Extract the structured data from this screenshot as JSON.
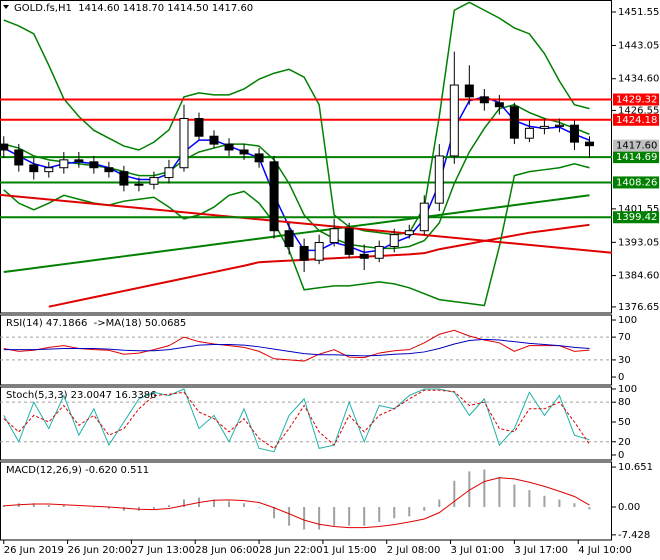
{
  "chart_data": [
    {
      "type": "candlestick",
      "title": "GOLD.fs,H1  1414.60 1418.70 1414.50 1417.60",
      "xlim": [
        -1,
        162
      ],
      "ylim": [
        1375.1,
        1454.6
      ],
      "x": [
        0,
        4,
        8,
        12,
        16,
        20,
        24,
        28,
        32,
        36,
        40,
        44,
        48,
        52,
        56,
        60,
        64,
        68,
        72,
        76,
        80,
        84,
        88,
        92,
        96,
        100,
        104,
        108,
        112,
        116,
        120,
        124,
        128,
        132,
        136,
        140,
        144,
        148,
        152,
        156
      ],
      "xticks": [
        {
          "value": 0,
          "label": "26 Jun 2019"
        },
        {
          "value": 17,
          "label": "26 Jun 20:00"
        },
        {
          "value": 34,
          "label": "27 Jun 13:00"
        },
        {
          "value": 51,
          "label": "28 Jun 06:00"
        },
        {
          "value": 68,
          "label": "28 Jun 22:00"
        },
        {
          "value": 85,
          "label": "1 Jul 15:00"
        },
        {
          "value": 102,
          "label": "2 Jul 08:00"
        },
        {
          "value": 119,
          "label": "3 Jul 01:00"
        },
        {
          "value": 136,
          "label": "3 Jul 17:00"
        },
        {
          "value": 153,
          "label": "4 Jul 10:00"
        }
      ],
      "yticks": [
        1451.55,
        1443.05,
        {
          "value": 1434.6,
          "label": "1434.60"
        },
        1426.55,
        1401.55,
        1393.05,
        {
          "value": 1384.6,
          "label": "1384.60"
        },
        1376.65
      ],
      "up_color": "#ffffff",
      "down_color": "#000000",
      "open": [
        1418,
        1416.5,
        1412.7,
        1411,
        1412,
        1414,
        1413.5,
        1412,
        1411,
        1407.6,
        1407.8,
        1409.5,
        1412,
        1424.5,
        1420,
        1418,
        1416.5,
        1415.5,
        1413.5,
        1396,
        1392,
        1388.5,
        1393,
        1396.5,
        1390,
        1389,
        1392,
        1395,
        1396,
        1403,
        1415,
        1433,
        1430,
        1428.5,
        1427.5,
        1419.5,
        1422,
        1422.5,
        1422.8,
        1418.5
      ],
      "high": [
        1420,
        1418,
        1414.5,
        1413.5,
        1416,
        1416,
        1415,
        1413.5,
        1412.5,
        1409.5,
        1411,
        1414,
        1428,
        1426,
        1421.5,
        1419.5,
        1418,
        1417,
        1415,
        1398,
        1394,
        1395,
        1399,
        1398,
        1392.5,
        1393.5,
        1396.5,
        1397.5,
        1405,
        1418,
        1441.5,
        1438,
        1432,
        1430.5,
        1428.5,
        1424,
        1424.5,
        1424.5,
        1424,
        1420
      ],
      "low": [
        1414.5,
        1411,
        1409,
        1409.5,
        1410.5,
        1412,
        1410.5,
        1409.5,
        1406,
        1406,
        1406.5,
        1408,
        1411,
        1419,
        1417,
        1415,
        1414,
        1412,
        1394,
        1390,
        1385.5,
        1387.5,
        1392,
        1389,
        1386,
        1388,
        1390.5,
        1394,
        1395,
        1401,
        1413,
        1428,
        1426.5,
        1425.5,
        1418,
        1418.5,
        1420.5,
        1421,
        1416.5,
        1414.5
      ],
      "close": [
        1416.5,
        1412.7,
        1411,
        1412,
        1414,
        1413.5,
        1412,
        1411,
        1407.6,
        1407.8,
        1409.5,
        1412,
        1424.5,
        1420,
        1418,
        1416.5,
        1415.5,
        1413.5,
        1396,
        1392,
        1388.5,
        1393,
        1396.5,
        1390,
        1389,
        1392,
        1395,
        1396,
        1403,
        1415,
        1433,
        1430,
        1428.5,
        1427.5,
        1419.5,
        1422,
        1422.5,
        1422.8,
        1418.5,
        1417.6
      ],
      "series": [
        {
          "color": "#008000",
          "values": [
            1385.5,
            1386,
            1386.5,
            1387,
            1387.5,
            1388,
            1388.5,
            1389,
            1389.5,
            1390,
            1390.5,
            1391,
            1391.5,
            1392,
            1392.5,
            1393,
            1393.5,
            1394,
            1394.5,
            1395,
            1395.5,
            1396,
            1396.5,
            1397,
            1397.5,
            1398,
            1398.5,
            1399,
            1399.5,
            1400,
            1400.5,
            1401,
            1401.5,
            1402,
            1402.5,
            1403,
            1403.5,
            1404,
            1404.5,
            1405
          ]
        },
        {
          "color": "#e00000",
          "values": [
            null,
            null,
            null,
            1376.7,
            1377.5,
            1378.3,
            1379.1,
            1379.9,
            1380.7,
            1381.5,
            1382.3,
            1383.1,
            1383.9,
            1384.7,
            1385.5,
            1386.3,
            1387.1,
            1388,
            1388.2,
            1388.4,
            1388.6,
            1388.8,
            1389,
            1389.2,
            1389.4,
            1389.6,
            1389.8,
            1390,
            1390.3,
            1391.3,
            1392,
            1392.7,
            1393.4,
            1394.1,
            1394.8,
            1395.5,
            1396,
            1396.5,
            1397,
            1397.5
          ]
        },
        {
          "color": "#008000",
          "values": [
            1449.5,
            1448,
            1446,
            1438,
            1429.5,
            1425,
            1421.5,
            1419.5,
            1417.5,
            1416.5,
            1418.5,
            1421.6,
            1430,
            1431,
            1430.5,
            1430.5,
            1432,
            1434.5,
            1436,
            1437,
            1435,
            1428,
            1400,
            1397,
            1396,
            1395.5,
            1395,
            1395.5,
            1402,
            1425,
            1452,
            1454,
            1452,
            1450,
            1447.5,
            1446,
            1441,
            1434,
            1428,
            1427
          ]
        },
        {
          "color": "#008000",
          "values": [
            1406.4,
            1403,
            1401.3,
            1403,
            1405,
            1404,
            1403,
            1402.5,
            1403.5,
            1404,
            1404.5,
            1402,
            1399,
            1400,
            1402,
            1405,
            1406,
            1403,
            1398,
            1391,
            1381,
            1381.5,
            1382,
            1382,
            1382.5,
            1383,
            1382.5,
            1381.5,
            1380,
            1378.5,
            1378,
            1377.5,
            1377,
            1392,
            1410,
            1411,
            1411.5,
            1412,
            1413,
            1412
          ]
        },
        {
          "color": "#008000",
          "values": [
            1418,
            1417,
            1415,
            1414,
            1413.5,
            1413,
            1412.5,
            1412,
            1411,
            1410,
            1410,
            1411,
            1414,
            1416,
            1417,
            1418,
            1418,
            1417.5,
            1414,
            1408,
            1400,
            1396,
            1394,
            1392.5,
            1392,
            1391.5,
            1391.5,
            1392,
            1393.5,
            1398,
            1408,
            1416,
            1422,
            1427,
            1428,
            1426,
            1424.5,
            1423.5,
            1422,
            1420.5
          ]
        },
        {
          "color": "#0000ff",
          "values": [
            1417,
            1415,
            1413,
            1412,
            1413,
            1413.5,
            1413,
            1412,
            1410,
            1409,
            1409,
            1410.5,
            1416,
            1419,
            1419,
            1417.5,
            1416,
            1414.5,
            1405,
            1397,
            1391,
            1391,
            1393,
            1392,
            1390.5,
            1391,
            1393,
            1394.5,
            1399,
            1408,
            1422,
            1429,
            1430,
            1428.5,
            1424,
            1422.5,
            1422,
            1422.3,
            1420.5,
            1419
          ]
        }
      ],
      "trendlines": [
        {
          "color": "#e00000",
          "x": [
            -1,
            162
          ],
          "values": [
            1405.1,
            1390.4
          ]
        }
      ],
      "levels": [
        {
          "value": 1429.32,
          "color": "#ff0000"
        },
        {
          "value": 1424.18,
          "color": "#ff0000"
        },
        {
          "value": 1414.69,
          "color": "#008000"
        },
        {
          "value": 1408.26,
          "color": "#008000"
        },
        {
          "value": 1399.42,
          "color": "#008000"
        }
      ],
      "price": {
        "value": 1417.6,
        "label": "1417.60",
        "color": "#c0c0c0"
      }
    },
    {
      "type": "line",
      "title": "RSI(14) 47.1866  ->MA(18) 50.0685",
      "xlim": [
        -1,
        162
      ],
      "ylim": [
        -14,
        108.8
      ],
      "yticks": [
        0,
        30,
        70,
        100
      ],
      "dashed_levels": [
        30,
        70
      ],
      "x": [
        0,
        4,
        8,
        12,
        16,
        20,
        24,
        28,
        32,
        36,
        40,
        44,
        48,
        52,
        56,
        60,
        64,
        68,
        72,
        76,
        80,
        84,
        88,
        92,
        96,
        100,
        104,
        108,
        112,
        116,
        120,
        124,
        128,
        132,
        136,
        140,
        144,
        148,
        152,
        156
      ],
      "series": [
        {
          "color": "#e00000",
          "values": [
            50,
            45,
            47,
            52,
            55,
            50,
            48,
            47,
            40,
            42,
            48,
            55,
            70,
            62,
            58,
            55,
            52,
            45,
            32,
            30,
            28,
            40,
            48,
            35,
            34,
            42,
            46,
            48,
            60,
            75,
            82,
            72,
            65,
            60,
            45,
            55,
            55,
            55,
            45,
            47.1866
          ]
        },
        {
          "color": "#0000c0",
          "values": [
            48,
            48,
            48,
            49,
            50,
            50,
            50,
            49,
            47,
            46,
            46,
            48,
            52,
            56,
            57,
            57,
            56,
            53,
            49,
            45,
            41,
            39,
            39,
            38,
            37,
            38,
            40,
            41,
            44,
            50,
            58,
            64,
            66,
            65,
            62,
            59,
            57,
            55,
            52,
            50.0685
          ]
        }
      ]
    },
    {
      "type": "line",
      "title": "Stoch(5,3,3) 23.0047 16.3386",
      "xlim": [
        -1,
        162
      ],
      "ylim": [
        -7.6,
        103
      ],
      "yticks": [
        0,
        20,
        50,
        80,
        100
      ],
      "dashed_levels": [
        20,
        80
      ],
      "x": [
        0,
        4,
        8,
        12,
        16,
        20,
        24,
        28,
        32,
        36,
        40,
        44,
        48,
        52,
        56,
        60,
        64,
        68,
        72,
        76,
        80,
        84,
        88,
        92,
        96,
        100,
        104,
        108,
        112,
        116,
        120,
        124,
        128,
        132,
        136,
        140,
        144,
        148,
        152,
        156
      ],
      "series": [
        {
          "color": "#20b2aa",
          "values": [
            60,
            20,
            80,
            40,
            90,
            30,
            70,
            15,
            50,
            85,
            95,
            90,
            100,
            40,
            60,
            20,
            70,
            10,
            5,
            60,
            85,
            10,
            15,
            80,
            20,
            75,
            70,
            90,
            100,
            100,
            95,
            60,
            85,
            15,
            40,
            95,
            60,
            90,
            30,
            23.0047
          ]
        },
        {
          "color": "#e00000",
          "dashed": true,
          "values": [
            55,
            35,
            60,
            50,
            75,
            45,
            60,
            30,
            40,
            70,
            90,
            92,
            95,
            65,
            55,
            35,
            55,
            25,
            10,
            40,
            75,
            35,
            15,
            60,
            35,
            60,
            70,
            85,
            98,
            98,
            96,
            75,
            80,
            40,
            35,
            70,
            70,
            80,
            50,
            16.3386
          ]
        }
      ]
    },
    {
      "type": "macd",
      "title": "MACD(12,26,9) -0.620 0.511",
      "xlim": [
        -1,
        162
      ],
      "ylim": [
        -8.8,
        12
      ],
      "yticks": [
        -7.428,
        {
          "value": 0,
          "label": "0.00"
        },
        10.651
      ],
      "x": [
        0,
        4,
        8,
        12,
        16,
        20,
        24,
        28,
        32,
        36,
        40,
        44,
        48,
        52,
        56,
        60,
        64,
        68,
        72,
        76,
        80,
        84,
        88,
        92,
        96,
        100,
        104,
        108,
        112,
        116,
        120,
        124,
        128,
        132,
        136,
        140,
        144,
        148,
        152,
        156
      ],
      "histogram": {
        "color": "#a0a0a0",
        "values": [
          0.5,
          1,
          1,
          0.5,
          0.5,
          0,
          0,
          -0.5,
          -1,
          -1,
          -0.5,
          0.5,
          2,
          2.5,
          2,
          1.5,
          1,
          0,
          -3,
          -5,
          -6,
          -6,
          -5,
          -5,
          -5,
          -4,
          -3,
          -2.5,
          -1,
          2,
          7,
          9.5,
          10,
          8,
          6,
          4.5,
          3,
          2,
          1,
          -0.62
        ]
      },
      "signal": {
        "color": "#e00000",
        "values": [
          0.3,
          0.6,
          0.8,
          0.8,
          0.6,
          0.4,
          0.2,
          0,
          -0.3,
          -0.6,
          -0.7,
          -0.4,
          0.4,
          1.2,
          1.8,
          1.9,
          1.7,
          1.2,
          -0.2,
          -1.8,
          -3.5,
          -4.6,
          -5.2,
          -5.5,
          -5.5,
          -5.2,
          -4.7,
          -4,
          -3.2,
          -1.5,
          1.5,
          4.5,
          6.8,
          7.8,
          7.5,
          6.6,
          5.5,
          4.2,
          2.8,
          0.511
        ]
      }
    }
  ]
}
